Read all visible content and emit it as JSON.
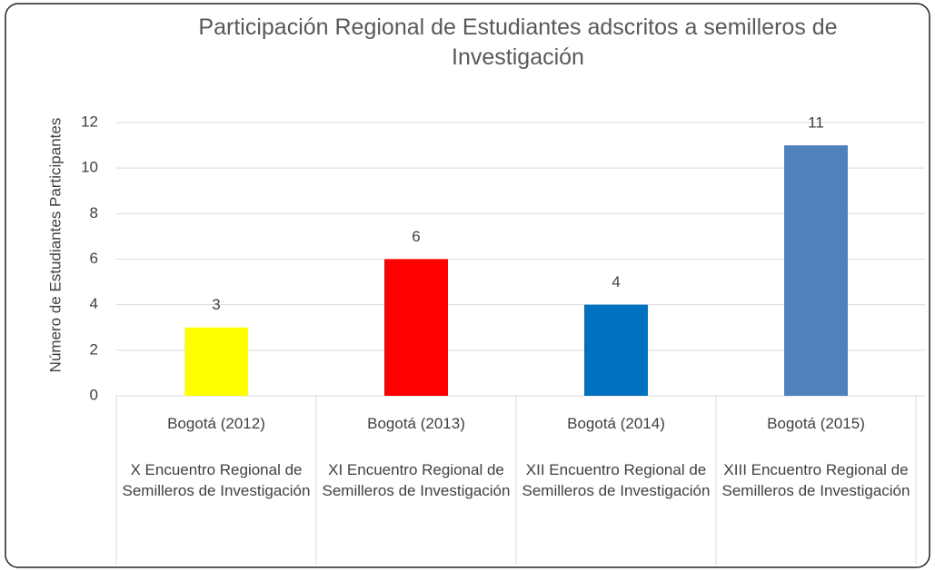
{
  "chart_data": {
    "type": "bar",
    "title": "Participación Regional de Estudiantes adscritos a semilleros de Investigación",
    "y_label": "Número de Estudiantes Participantes",
    "categories": [
      "Bogotá (2012)",
      "Bogotá (2013)",
      "Bogotá (2014)",
      "Bogotá (2015)"
    ],
    "subcategories": [
      "X Encuentro Regional de Semilleros de Investigación",
      "XI Encuentro Regional de Semilleros de Investigación",
      "XII Encuentro Regional de Semilleros de Investigación",
      "XIII Encuentro Regional de Semilleros de Investigación"
    ],
    "values": [
      3,
      6,
      4,
      11
    ],
    "colors": [
      "#ffff00",
      "#ff0000",
      "#0070c0",
      "#4f81bd"
    ],
    "ylim": [
      0,
      12
    ],
    "yticks": [
      0,
      2,
      4,
      6,
      8,
      10,
      12
    ],
    "grid": true
  }
}
